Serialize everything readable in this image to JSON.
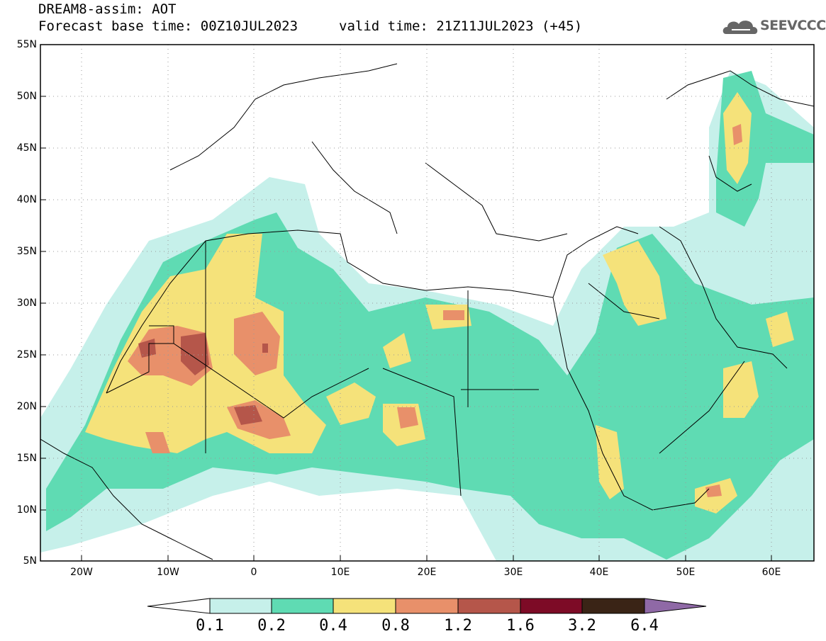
{
  "title": {
    "line1": "DREAM8-assim: AOT",
    "line2": "Forecast base time: 00Z10JUL2023",
    "valid": "valid time: 21Z11JUL2023 (+45)"
  },
  "logo": {
    "text": "SEEVCCC",
    "icon": "cloud-icon"
  },
  "lat_labels": [
    "55N",
    "50N",
    "45N",
    "40N",
    "35N",
    "30N",
    "25N",
    "20N",
    "15N",
    "10N",
    "5N"
  ],
  "lon_labels": [
    "20W",
    "10W",
    "0",
    "10E",
    "20E",
    "30E",
    "40E",
    "50E",
    "60E"
  ],
  "colorbar": {
    "labels": [
      "0.1",
      "0.2",
      "0.4",
      "0.8",
      "1.2",
      "1.6",
      "3.2",
      "6.4"
    ],
    "colors": [
      "#ffffff",
      "#c6f0ea",
      "#5fdbb3",
      "#f5e27a",
      "#e8906a",
      "#b5564a",
      "#7d0b26",
      "#3a2416",
      "#8f69a6"
    ]
  },
  "colors": {
    "c1": "#c6f0ea",
    "c2": "#5fdbb3",
    "c3": "#f5e27a",
    "c4": "#e8906a",
    "c5": "#b5564a"
  }
}
